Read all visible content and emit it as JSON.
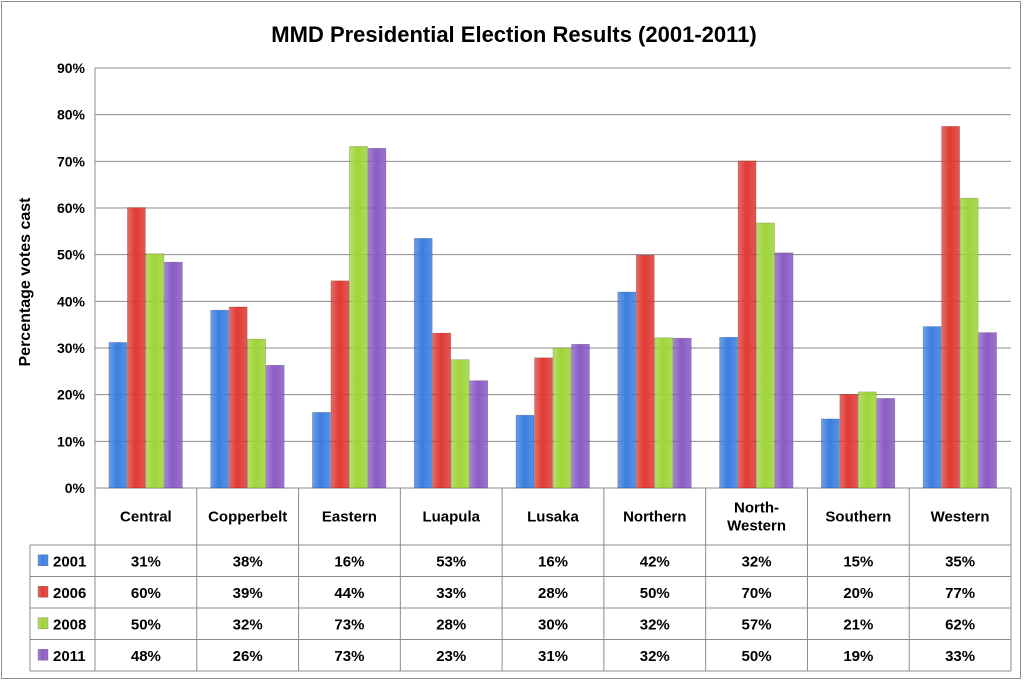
{
  "chart_data": {
    "type": "bar",
    "title": "MMD Presidential Election Results (2001-2011)",
    "xlabel": "",
    "ylabel": "Percentage votes cast",
    "ylim": [
      0,
      90
    ],
    "yticks": [
      0,
      10,
      20,
      30,
      40,
      50,
      60,
      70,
      80,
      90
    ],
    "ytick_labels": [
      "0%",
      "10%",
      "20%",
      "30%",
      "40%",
      "50%",
      "60%",
      "70%",
      "80%",
      "90%"
    ],
    "grid": true,
    "legend": "bottom-left data table",
    "categories": [
      "Central",
      "Copperbelt",
      "Eastern",
      "Luapula",
      "Lusaka",
      "Northern",
      "North-Western",
      "Southern",
      "Western"
    ],
    "category_lines": [
      [
        "Central"
      ],
      [
        "Copperbelt"
      ],
      [
        "Eastern"
      ],
      [
        "Luapula"
      ],
      [
        "Lusaka"
      ],
      [
        "Northern"
      ],
      [
        "North-",
        "Western"
      ],
      [
        "Southern"
      ],
      [
        "Western"
      ]
    ],
    "series": [
      {
        "name": "2001",
        "color": "#3b7ee0",
        "values": [
          31.2,
          38.1,
          16.2,
          53.5,
          15.6,
          42.0,
          32.3,
          14.8,
          34.6
        ],
        "labels": [
          "31%",
          "38%",
          "16%",
          "53%",
          "16%",
          "42%",
          "32%",
          "15%",
          "35%"
        ]
      },
      {
        "name": "2006",
        "color": "#e03a34",
        "values": [
          60.1,
          38.8,
          44.4,
          33.2,
          27.9,
          49.9,
          70.1,
          20.1,
          77.5
        ],
        "labels": [
          "60%",
          "39%",
          "44%",
          "33%",
          "28%",
          "50%",
          "70%",
          "20%",
          "77%"
        ]
      },
      {
        "name": "2008",
        "color": "#9fd43a",
        "values": [
          50.2,
          31.9,
          73.2,
          27.5,
          30.0,
          32.2,
          56.8,
          20.6,
          62.1
        ],
        "labels": [
          "50%",
          "32%",
          "73%",
          "28%",
          "30%",
          "32%",
          "57%",
          "21%",
          "62%"
        ]
      },
      {
        "name": "2011",
        "color": "#8a5cc4",
        "values": [
          48.4,
          26.3,
          72.8,
          23.0,
          30.8,
          32.1,
          50.4,
          19.2,
          33.3
        ],
        "labels": [
          "48%",
          "26%",
          "73%",
          "23%",
          "31%",
          "32%",
          "50%",
          "19%",
          "33%"
        ]
      }
    ]
  }
}
